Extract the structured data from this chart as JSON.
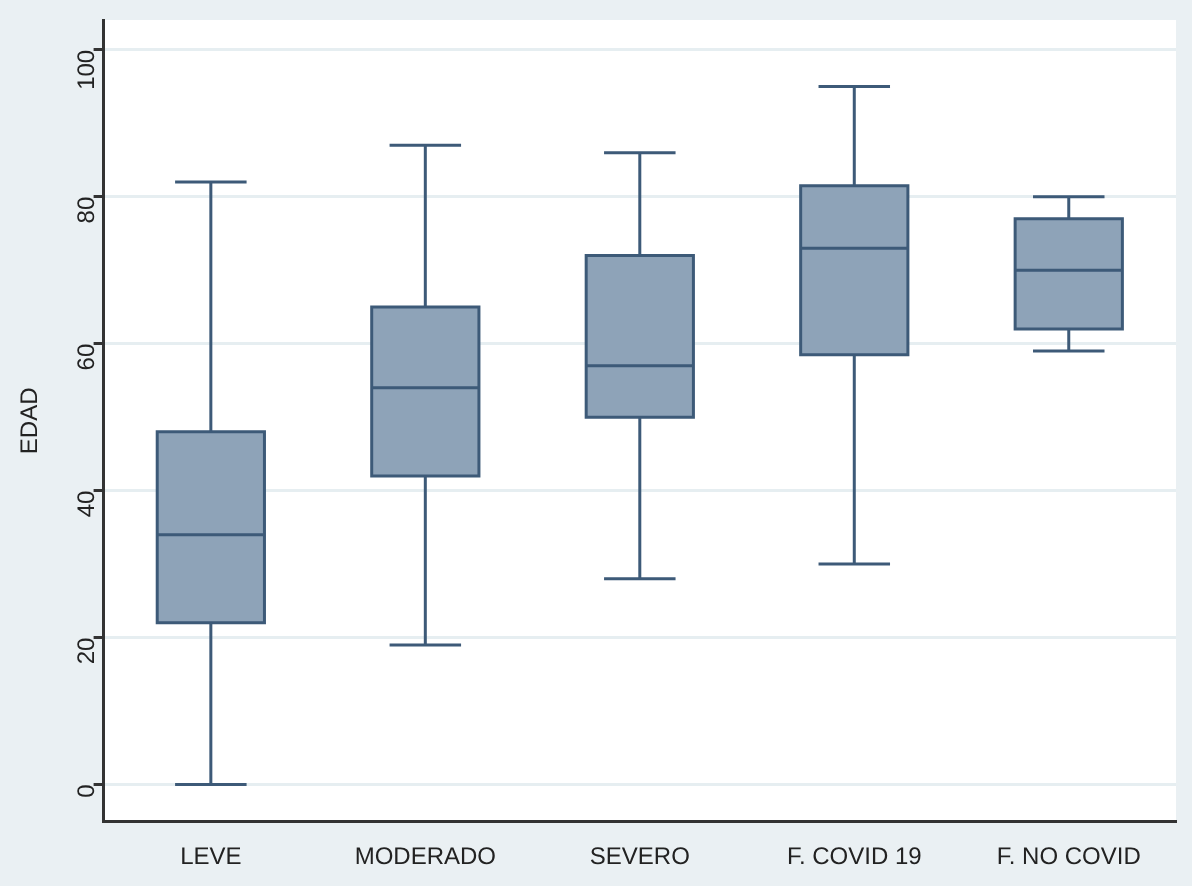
{
  "chart_data": {
    "type": "box",
    "ylabel": "EDAD",
    "categories": [
      "LEVE",
      "MODERADO",
      "SEVERO",
      "F. COVID 19",
      "F. NO COVID"
    ],
    "boxes": [
      {
        "low": 0,
        "q1": 22,
        "median": 34,
        "q3": 48,
        "high": 82
      },
      {
        "low": 19,
        "q1": 42,
        "median": 54,
        "q3": 65,
        "high": 87
      },
      {
        "low": 28,
        "q1": 50,
        "median": 57,
        "q3": 72,
        "high": 86
      },
      {
        "low": 30,
        "q1": 58.5,
        "median": 73,
        "q3": 81.5,
        "high": 95
      },
      {
        "low": 59,
        "q1": 62,
        "median": 70,
        "q3": 77,
        "high": 80
      }
    ],
    "color": "#8ea3b8",
    "ylim": [
      -5,
      104
    ],
    "yticks": [
      0,
      20,
      40,
      60,
      80,
      100
    ],
    "grid": "y",
    "legend": false
  }
}
